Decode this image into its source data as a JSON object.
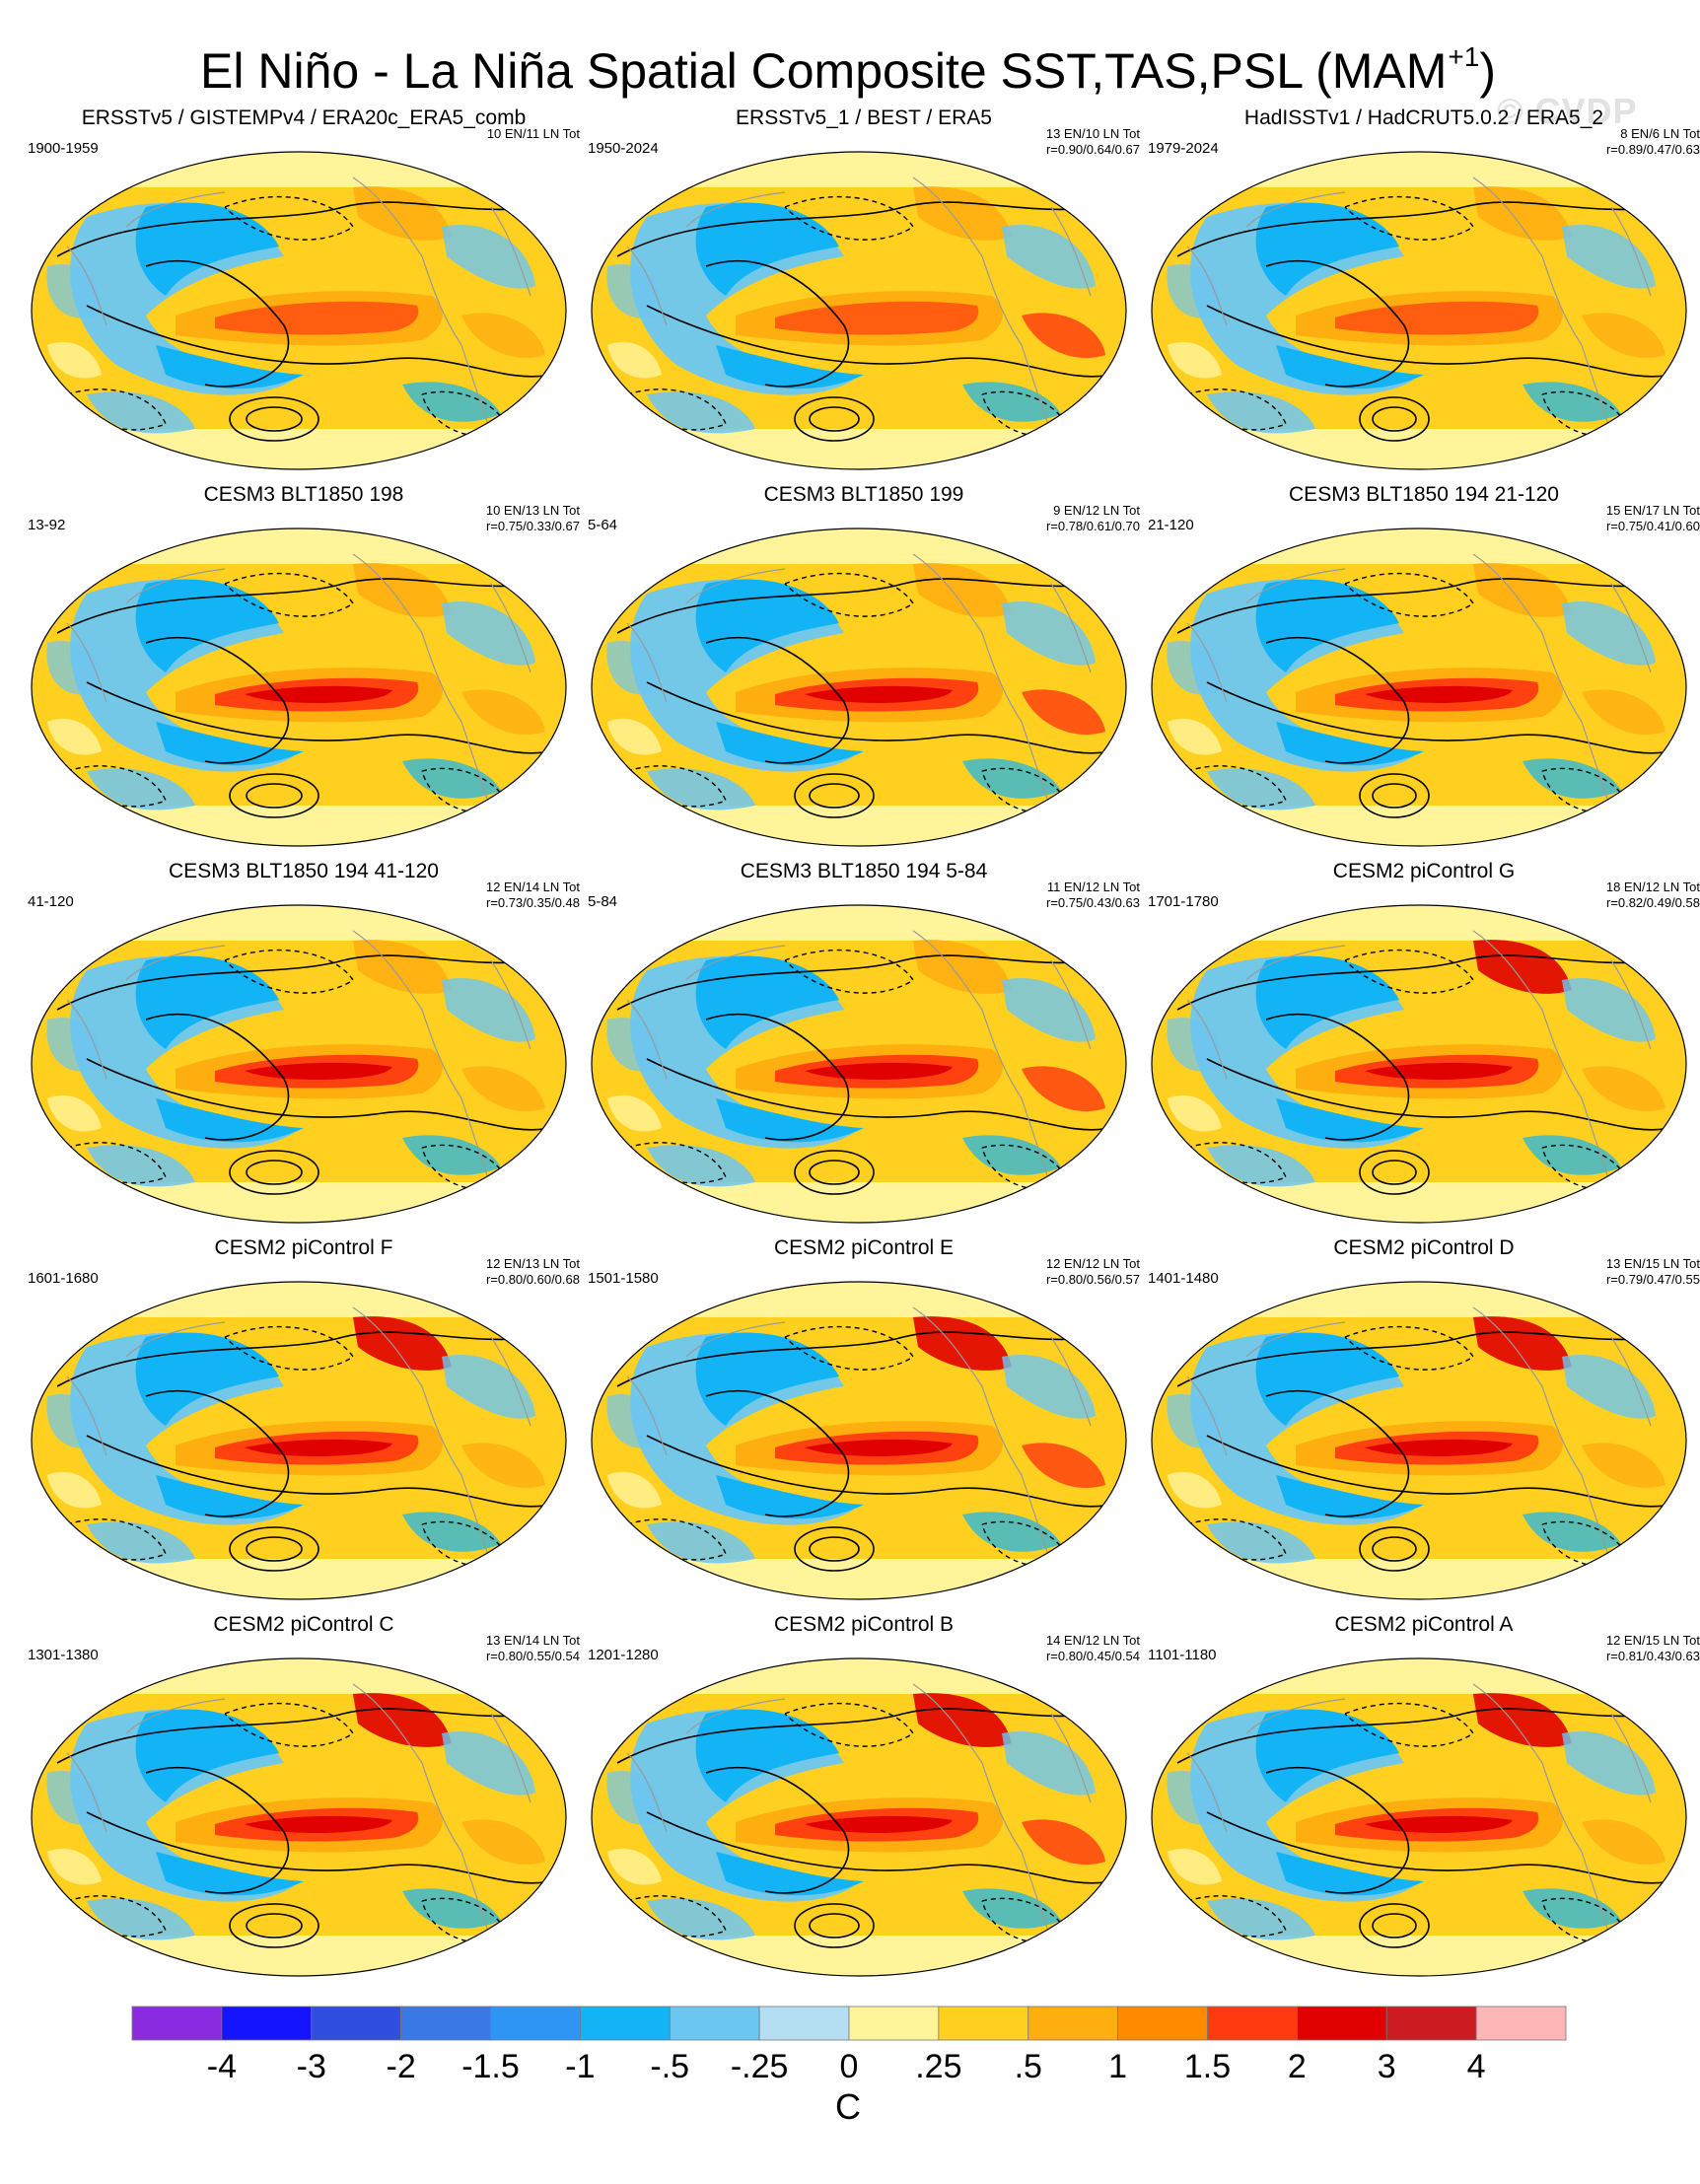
{
  "figure": {
    "title_main": "El Niño - La Niña Spatial Composite SST,TAS,PSL (MAM",
    "title_sup": "+1",
    "title_close": ")",
    "watermark": "© CVDP"
  },
  "panels": [
    {
      "title": "ERSSTv5 / GISTEMPv4 / ERA20c_ERA5_comb",
      "period": "1900-1959",
      "counts": "10 EN/11 LN Tot",
      "stats": ""
    },
    {
      "title": "ERSSTv5_1 / BEST / ERA5",
      "period": "1950-2024",
      "counts": "13 EN/10 LN Tot",
      "stats": "r=0.90/0.64/0.67"
    },
    {
      "title": "HadISSTv1 / HadCRUT5.0.2 / ERA5_2",
      "period": "1979-2024",
      "counts": "8 EN/6 LN Tot",
      "stats": "r=0.89/0.47/0.63"
    },
    {
      "title": "CESM3 BLT1850 198",
      "period": "13-92",
      "counts": "10 EN/13 LN Tot",
      "stats": "r=0.75/0.33/0.67"
    },
    {
      "title": "CESM3 BLT1850 199",
      "period": "5-64",
      "counts": "9 EN/12 LN Tot",
      "stats": "r=0.78/0.61/0.70"
    },
    {
      "title": "CESM3 BLT1850 194 21-120",
      "period": "21-120",
      "counts": "15 EN/17 LN Tot",
      "stats": "r=0.75/0.41/0.60"
    },
    {
      "title": "CESM3 BLT1850 194 41-120",
      "period": "41-120",
      "counts": "12 EN/14 LN Tot",
      "stats": "r=0.73/0.35/0.48"
    },
    {
      "title": "CESM3 BLT1850 194 5-84",
      "period": "5-84",
      "counts": "11 EN/12 LN Tot",
      "stats": "r=0.75/0.43/0.63"
    },
    {
      "title": "CESM2 piControl G",
      "period": "1701-1780",
      "counts": "18 EN/12 LN Tot",
      "stats": "r=0.82/0.49/0.58"
    },
    {
      "title": "CESM2 piControl F",
      "period": "1601-1680",
      "counts": "12 EN/13 LN Tot",
      "stats": "r=0.80/0.60/0.68"
    },
    {
      "title": "CESM2 piControl E",
      "period": "1501-1580",
      "counts": "12 EN/12 LN Tot",
      "stats": "r=0.80/0.56/0.57"
    },
    {
      "title": "CESM2 piControl D",
      "period": "1401-1480",
      "counts": "13 EN/15 LN Tot",
      "stats": "r=0.79/0.47/0.55"
    },
    {
      "title": "CESM2 piControl C",
      "period": "1301-1380",
      "counts": "13 EN/14 LN Tot",
      "stats": "r=0.80/0.55/0.54"
    },
    {
      "title": "CESM2 piControl B",
      "period": "1201-1280",
      "counts": "14 EN/12 LN Tot",
      "stats": "r=0.80/0.45/0.54"
    },
    {
      "title": "CESM2 piControl A",
      "period": "1101-1180",
      "counts": "12 EN/15 LN Tot",
      "stats": "r=0.81/0.43/0.63"
    }
  ],
  "colorbar": {
    "colors": [
      "#8a2be2",
      "#1414ff",
      "#2e4fe0",
      "#3a78e6",
      "#2f95f5",
      "#12b4f5",
      "#6cc6f2",
      "#b4dff2",
      "#fff49a",
      "#ffd020",
      "#ffae10",
      "#ff8a00",
      "#ff3a10",
      "#e00000",
      "#cc1c22",
      "#ffb6b6"
    ],
    "labels": [
      "-4",
      "-3",
      "-2",
      "-1.5",
      "-1",
      "-.5",
      "-.25",
      "0",
      ".25",
      ".5",
      "1",
      "1.5",
      "2",
      "3",
      "4"
    ],
    "unit": "C"
  }
}
